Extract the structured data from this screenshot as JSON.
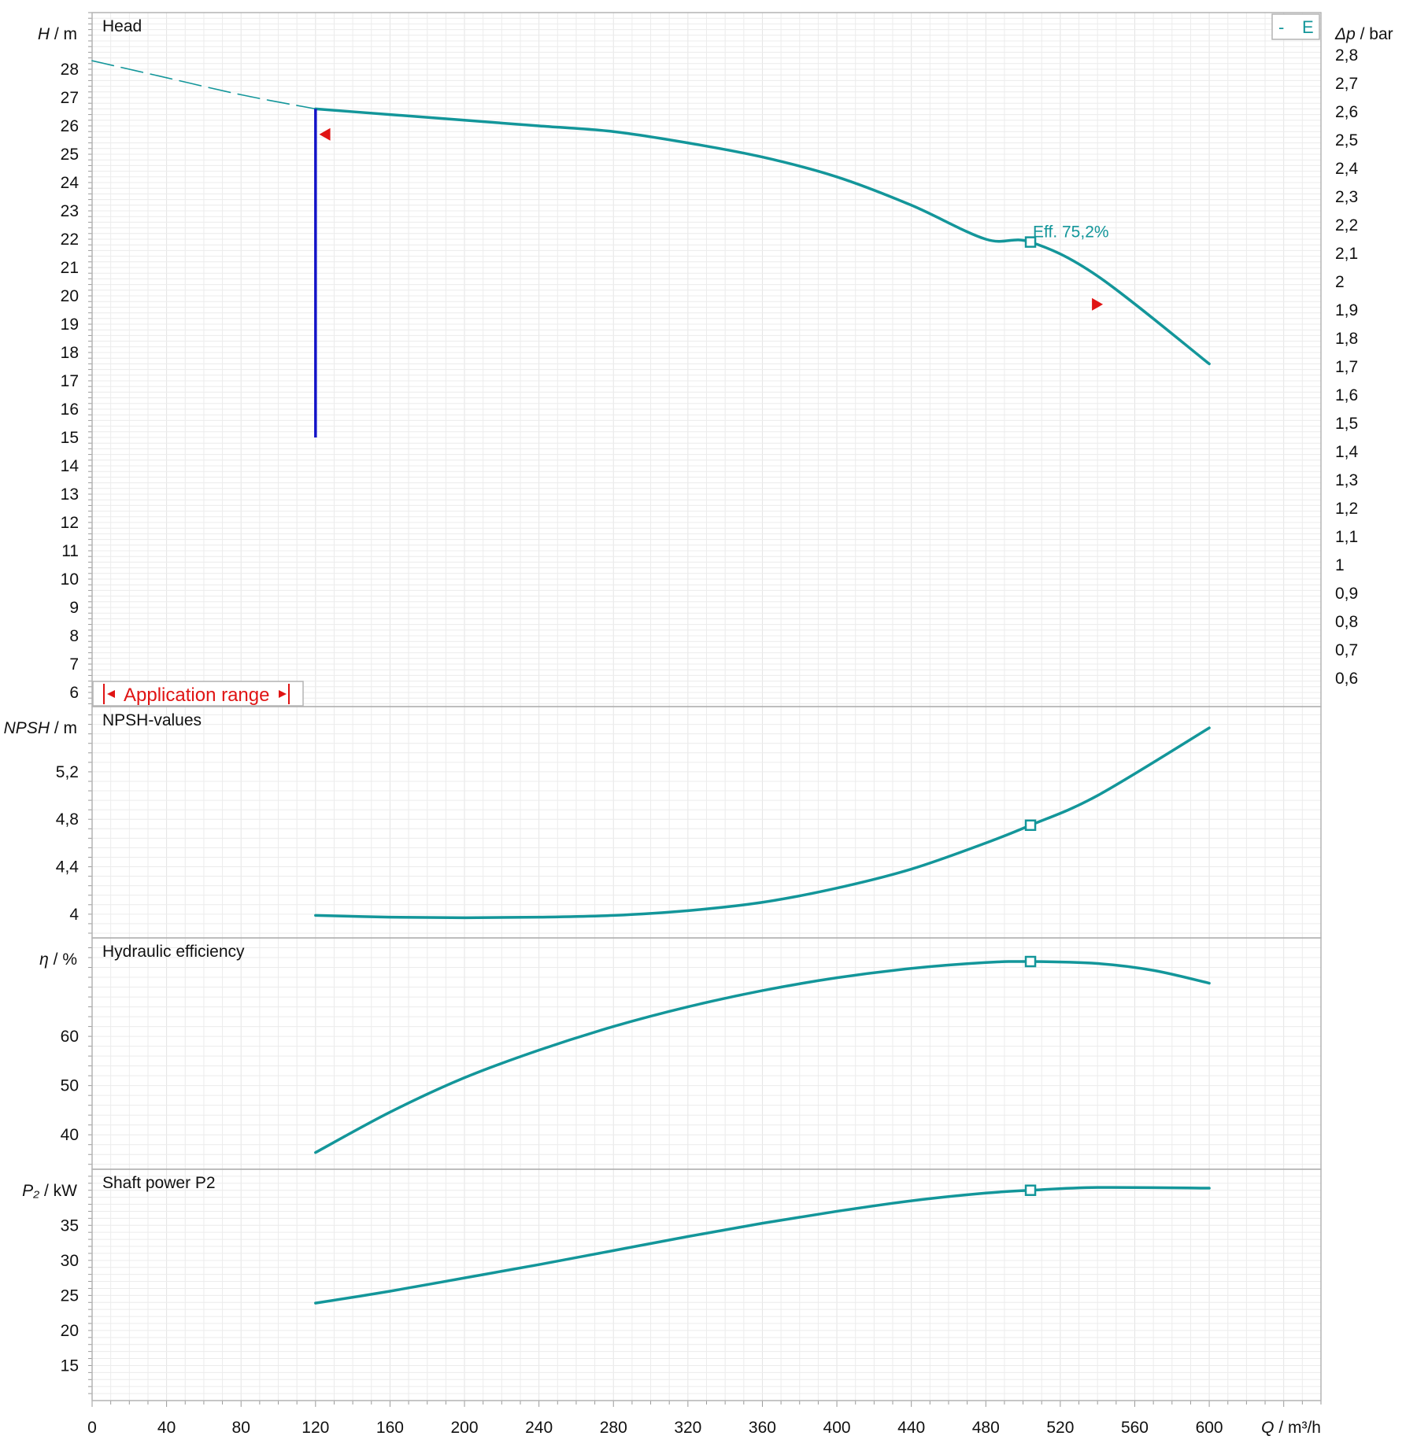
{
  "colors": {
    "curve": "#13969a",
    "limit_line": "#1414c8",
    "marker": "#e01414",
    "frame": "#b4b4b4",
    "grid": "#ececec"
  },
  "legend": {
    "dash": "-",
    "label": "E"
  },
  "x_axis": {
    "var": "Q",
    "unit": "/ m³/h",
    "ticks": [
      0,
      40,
      80,
      120,
      160,
      200,
      240,
      280,
      320,
      360,
      400,
      440,
      480,
      520,
      560,
      600
    ]
  },
  "chart_data": [
    {
      "type": "line",
      "id": "head",
      "title": "Head",
      "y_var": "H",
      "y_unit": "/ m",
      "y_ticks": [
        6,
        7,
        8,
        9,
        10,
        11,
        12,
        13,
        14,
        15,
        16,
        17,
        18,
        19,
        20,
        21,
        22,
        23,
        24,
        25,
        26,
        27,
        28
      ],
      "y2_var": "Δp",
      "y2_unit": "/ bar",
      "y2_ticks": [
        "0,6",
        "0,7",
        "0,8",
        "0,9",
        "1",
        "1,1",
        "1,2",
        "1,3",
        "1,4",
        "1,5",
        "1,6",
        "1,7",
        "1,8",
        "1,9",
        "2",
        "2,1",
        "2,2",
        "2,3",
        "2,4",
        "2,5",
        "2,6",
        "2,7",
        "2,8"
      ],
      "xlim": [
        0,
        660
      ],
      "ylim": [
        5.5,
        30
      ],
      "series": [
        {
          "style": "dashed",
          "x": [
            0,
            40,
            80,
            120
          ],
          "y": [
            28.3,
            27.7,
            27.1,
            26.6
          ]
        },
        {
          "style": "solid",
          "x": [
            120,
            160,
            200,
            240,
            280,
            320,
            360,
            400,
            440,
            480,
            504,
            540,
            600
          ],
          "y": [
            26.6,
            26.4,
            26.2,
            26.0,
            25.8,
            25.4,
            24.9,
            24.2,
            23.2,
            22.0,
            21.9,
            20.7,
            17.6
          ]
        }
      ],
      "limit_line": {
        "x": 120,
        "y": [
          15,
          26.6
        ]
      },
      "duty_point": {
        "x": 504,
        "y": 21.9,
        "label": "Eff.  75,2%"
      },
      "range_markers": [
        {
          "x": 122,
          "y": 25.7,
          "dir": "left"
        },
        {
          "x": 537,
          "y": 19.7,
          "dir": "right"
        }
      ],
      "annotation": "Application range"
    },
    {
      "type": "line",
      "id": "npsh",
      "title": "NPSH-values",
      "y_var": "NPSH",
      "y_unit": "/ m",
      "y_ticks": [
        "4",
        "4,4",
        "4,8",
        "5,2"
      ],
      "y_tick_values": [
        4,
        4.4,
        4.8,
        5.2
      ],
      "xlim": [
        0,
        660
      ],
      "ylim": [
        3.8,
        5.75
      ],
      "series": [
        {
          "style": "solid",
          "x": [
            120,
            160,
            200,
            240,
            280,
            320,
            360,
            400,
            440,
            480,
            504,
            540,
            600
          ],
          "y": [
            3.99,
            3.975,
            3.97,
            3.975,
            3.99,
            4.03,
            4.1,
            4.22,
            4.38,
            4.6,
            4.75,
            5.0,
            5.57
          ]
        }
      ],
      "duty_point": {
        "x": 504,
        "y": 4.75
      }
    },
    {
      "type": "line",
      "id": "efficiency",
      "title": "Hydraulic efficiency",
      "y_var": "η",
      "y_unit": "/ %",
      "y_ticks": [
        40,
        50,
        60
      ],
      "xlim": [
        0,
        660
      ],
      "ylim": [
        33,
        80
      ],
      "series": [
        {
          "style": "solid",
          "x": [
            120,
            160,
            200,
            240,
            280,
            320,
            360,
            400,
            440,
            480,
            504,
            540,
            570,
            600
          ],
          "y": [
            36.4,
            44.6,
            51.6,
            57.2,
            62.0,
            66.0,
            69.3,
            71.9,
            73.8,
            75.0,
            75.2,
            74.8,
            73.4,
            70.8
          ]
        }
      ],
      "duty_point": {
        "x": 504,
        "y": 75.2
      }
    },
    {
      "type": "line",
      "id": "power",
      "title": "Shaft power P2",
      "y_var": "P₂",
      "y_unit": "/ kW",
      "y_ticks": [
        15,
        20,
        25,
        30,
        35
      ],
      "xlim": [
        0,
        660
      ],
      "ylim": [
        10,
        43
      ],
      "series": [
        {
          "style": "solid",
          "x": [
            120,
            160,
            200,
            240,
            280,
            320,
            360,
            400,
            440,
            480,
            504,
            540,
            600
          ],
          "y": [
            23.9,
            25.6,
            27.5,
            29.4,
            31.4,
            33.4,
            35.3,
            37.0,
            38.5,
            39.6,
            40.0,
            40.4,
            40.3
          ]
        }
      ],
      "duty_point": {
        "x": 504,
        "y": 40.0
      }
    }
  ]
}
